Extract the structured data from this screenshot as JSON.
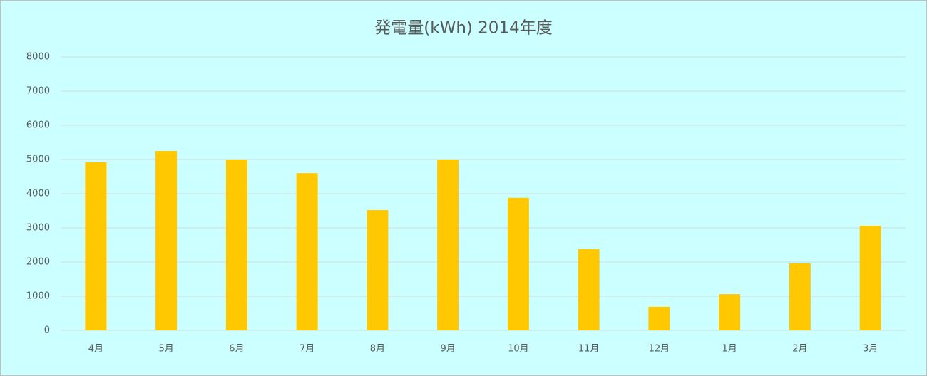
{
  "chart_data": {
    "type": "bar",
    "title": "発電量(kWh) 2014年度",
    "categories": [
      "4月",
      "5月",
      "6月",
      "7月",
      "8月",
      "9月",
      "10月",
      "11月",
      "12月",
      "1月",
      "2月",
      "3月"
    ],
    "values": [
      4920,
      5250,
      5000,
      4600,
      3520,
      5000,
      3880,
      2380,
      690,
      1060,
      1960,
      3060
    ],
    "color": "#ffc800",
    "ylim": [
      0,
      8000
    ],
    "yticks": [
      0,
      1000,
      2000,
      3000,
      4000,
      5000,
      6000,
      7000,
      8000
    ],
    "grid": true
  }
}
